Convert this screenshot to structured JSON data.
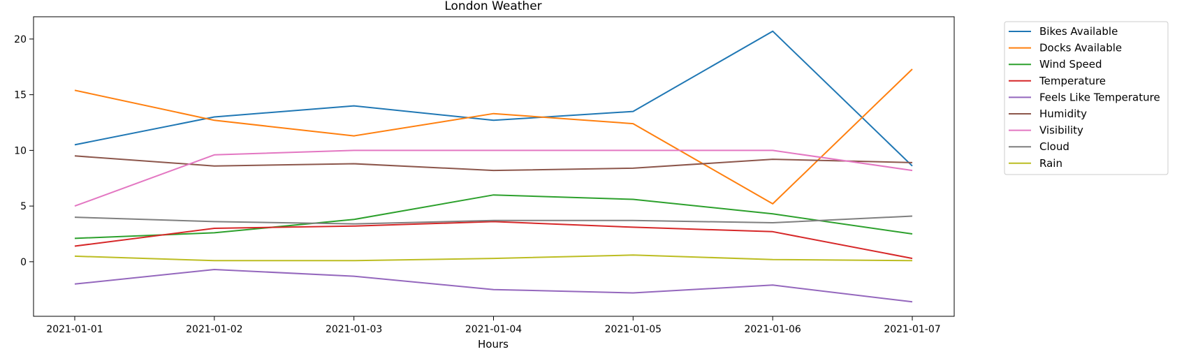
{
  "chart_data": {
    "type": "line",
    "title": "London Weather",
    "xlabel": "Hours",
    "ylabel": "",
    "x": [
      "2021-01-01",
      "2021-01-02",
      "2021-01-03",
      "2021-01-04",
      "2021-01-05",
      "2021-01-06",
      "2021-01-07"
    ],
    "yticks": [
      0,
      5,
      10,
      15,
      20
    ],
    "ylim": [
      -4.9,
      22
    ],
    "grid": false,
    "legend_position": "outside-right",
    "series": [
      {
        "name": "Bikes Available",
        "color": "#1f77b4",
        "values": [
          10.5,
          13.0,
          14.0,
          12.7,
          13.5,
          20.7,
          8.6
        ]
      },
      {
        "name": "Docks Available",
        "color": "#ff7f0e",
        "values": [
          15.4,
          12.7,
          11.3,
          13.3,
          12.4,
          5.2,
          17.3
        ]
      },
      {
        "name": "Wind Speed",
        "color": "#2ca02c",
        "values": [
          2.1,
          2.6,
          3.8,
          6.0,
          5.6,
          4.3,
          2.5
        ]
      },
      {
        "name": "Temperature",
        "color": "#d62728",
        "values": [
          1.4,
          3.0,
          3.2,
          3.6,
          3.1,
          2.7,
          0.3
        ]
      },
      {
        "name": "Feels Like Temperature",
        "color": "#9467bd",
        "values": [
          -2.0,
          -0.7,
          -1.3,
          -2.5,
          -2.8,
          -2.1,
          -3.6
        ]
      },
      {
        "name": "Humidity",
        "color": "#8c564b",
        "values": [
          9.5,
          8.6,
          8.8,
          8.2,
          8.4,
          9.2,
          8.9
        ]
      },
      {
        "name": "Visibility",
        "color": "#e377c2",
        "values": [
          5.0,
          9.6,
          10.0,
          10.0,
          10.0,
          10.0,
          8.2
        ]
      },
      {
        "name": "Cloud",
        "color": "#7f7f7f",
        "values": [
          4.0,
          3.6,
          3.4,
          3.7,
          3.7,
          3.5,
          4.1
        ]
      },
      {
        "name": "Rain",
        "color": "#bcbd22",
        "values": [
          0.5,
          0.1,
          0.1,
          0.3,
          0.6,
          0.2,
          0.1
        ]
      }
    ]
  }
}
